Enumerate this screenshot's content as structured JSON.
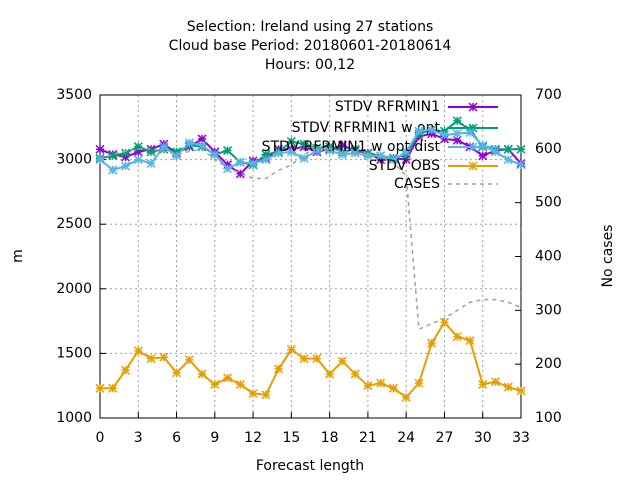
{
  "chart_data": {
    "type": "line",
    "title": [
      "Selection: Ireland using    27 stations",
      "Cloud base   Period: 20180601-20180614",
      "Hours:  00,12"
    ],
    "x_label": "Forecast length",
    "y_label": "m",
    "y2_label": "No cases",
    "x": [
      0,
      1,
      2,
      3,
      4,
      5,
      6,
      7,
      8,
      9,
      10,
      11,
      12,
      13,
      14,
      15,
      16,
      17,
      18,
      19,
      20,
      21,
      22,
      23,
      24,
      25,
      26,
      27,
      28,
      29,
      30,
      31,
      32,
      33
    ],
    "xlim": [
      0,
      33
    ],
    "xticks": [
      0,
      3,
      6,
      9,
      12,
      15,
      18,
      21,
      24,
      27,
      30,
      33
    ],
    "ylim": [
      1000,
      3500
    ],
    "yticks": [
      1000,
      1500,
      2000,
      2500,
      3000,
      3500
    ],
    "y2lim": [
      100,
      700
    ],
    "y2ticks": [
      100,
      200,
      300,
      400,
      500,
      600,
      700
    ],
    "grid": true,
    "legend": "top-right",
    "series": [
      {
        "name": "STDV RFRMIN1",
        "color": "#9400d3",
        "marker": true,
        "values": [
          3080,
          3040,
          3020,
          3060,
          3080,
          3120,
          3050,
          3100,
          3160,
          3060,
          2960,
          2890,
          2990,
          3010,
          3080,
          3080,
          3100,
          3060,
          3080,
          3110,
          3070,
          3050,
          3000,
          3010,
          3000,
          3180,
          3200,
          3160,
          3150,
          3100,
          3030,
          3070,
          3080,
          2970
        ]
      },
      {
        "name": "STDV RFRMIN1 w opt",
        "color": "#009e73",
        "marker": true,
        "values": [
          3010,
          3030,
          3050,
          3100,
          3060,
          3080,
          3060,
          3110,
          3100,
          3040,
          3070,
          2980,
          2960,
          3040,
          3060,
          3140,
          3120,
          3090,
          3100,
          3060,
          3080,
          3050,
          3030,
          3010,
          3040,
          3200,
          3230,
          3220,
          3300,
          3230,
          3100,
          3080,
          3080,
          3080
        ]
      },
      {
        "name": "STDV RFRMIN1 w opt dist",
        "color": "#56b4e9",
        "marker": true,
        "values": [
          3000,
          2920,
          2950,
          3000,
          2970,
          3100,
          3030,
          3130,
          3110,
          3040,
          2930,
          2980,
          2970,
          3000,
          3050,
          3060,
          3010,
          3070,
          3070,
          3040,
          3050,
          3030,
          3030,
          3000,
          3060,
          3220,
          3230,
          3190,
          3200,
          3210,
          3110,
          3060,
          3000,
          2960
        ]
      },
      {
        "name": "STDV OBS",
        "color": "#e69f00",
        "marker": true,
        "values": [
          1230,
          1230,
          1370,
          1520,
          1460,
          1470,
          1350,
          1450,
          1340,
          1260,
          1310,
          1260,
          1190,
          1180,
          1380,
          1530,
          1460,
          1460,
          1340,
          1440,
          1340,
          1250,
          1270,
          1230,
          1160,
          1270,
          1580,
          1740,
          1630,
          1600,
          1260,
          1280,
          1240,
          1210
        ]
      },
      {
        "name": "CASES",
        "color": "#a0a0a0",
        "marker": false,
        "dashed": true,
        "axis": "y2",
        "values": [
          580,
          590,
          595,
          600,
          600,
          595,
          590,
          595,
          600,
          580,
          565,
          555,
          545,
          545,
          560,
          570,
          590,
          600,
          600,
          595,
          590,
          590,
          585,
          575,
          550,
          265,
          275,
          285,
          300,
          315,
          320,
          320,
          315,
          305
        ]
      }
    ]
  }
}
